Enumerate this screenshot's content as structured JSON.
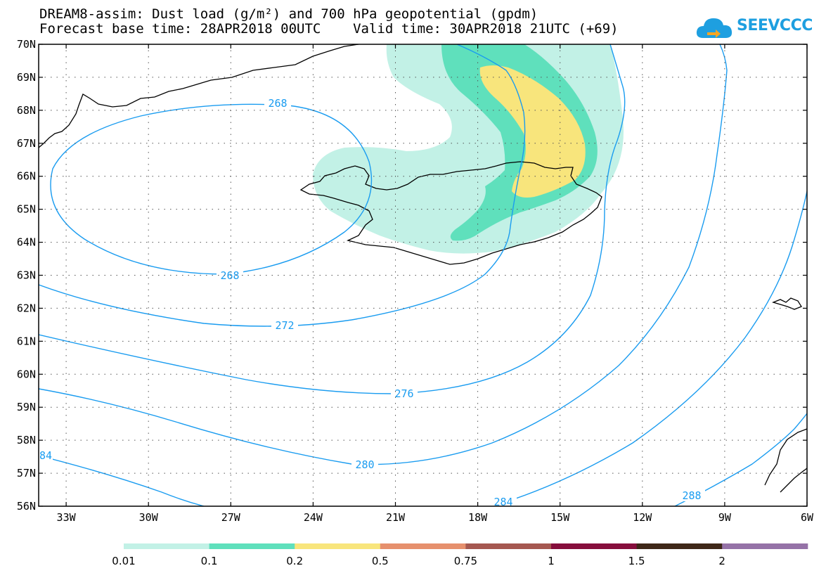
{
  "title_line1": "DREAM8-assim: Dust load (g/m²) and 700 hPa geopotential (gpdm)",
  "title_line2": "Forecast base time: 28APR2018 00UTC    Valid time: 30APR2018 21UTC (+69)",
  "logo_text": "SEEVCCC",
  "map": {
    "lat_labels": [
      "70N",
      "69N",
      "68N",
      "67N",
      "66N",
      "65N",
      "64N",
      "63N",
      "62N",
      "61N",
      "60N",
      "59N",
      "58N",
      "57N",
      "56N"
    ],
    "lon_labels": [
      "33W",
      "30W",
      "27W",
      "24W",
      "21W",
      "18W",
      "15W",
      "12W",
      "9W",
      "6W"
    ],
    "contour_labels": [
      "268",
      "268",
      "272",
      "276",
      "280",
      "284",
      "288",
      "84"
    ],
    "contour_color": "#1a9cf0"
  },
  "colorbar": {
    "labels": [
      "0.01",
      "0.1",
      "0.2",
      "0.5",
      "0.75",
      "1",
      "1.5",
      "2"
    ],
    "colors": [
      "#c2f1e6",
      "#5fe0bc",
      "#f8e57c",
      "#e6906d",
      "#a55850",
      "#860e3c",
      "#3e2718",
      "#9572a7"
    ]
  },
  "dust_colors": [
    "#c2f1e6",
    "#5fe0bc",
    "#f8e57c"
  ]
}
